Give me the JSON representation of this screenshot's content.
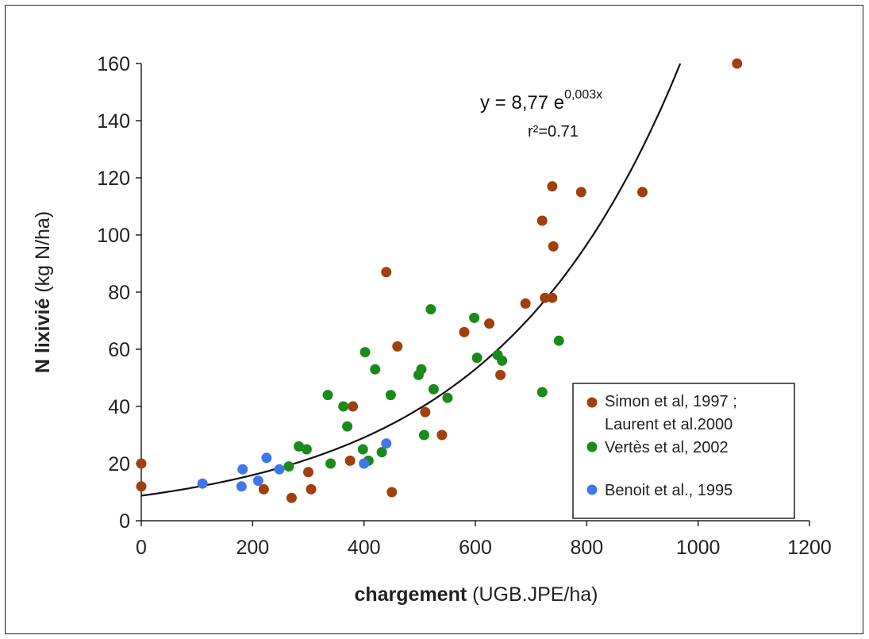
{
  "chart_data": {
    "type": "scatter",
    "title": "",
    "xlabel_bold": "chargement",
    "xlabel_rest": " (UGB.JPE/ha)",
    "ylabel_bold": "N lixivié",
    "ylabel_rest": "  (kg N/ha)",
    "xlim": [
      0,
      1200
    ],
    "ylim": [
      0,
      160
    ],
    "xticks": [
      0,
      200,
      400,
      600,
      800,
      1000,
      1200
    ],
    "yticks": [
      0,
      20,
      40,
      60,
      80,
      100,
      120,
      140,
      160
    ],
    "legend_position": "bottom-right",
    "trendline": {
      "type": "exponential",
      "a": 8.77,
      "b": 0.003,
      "equation_main": "y = 8,77 e",
      "equation_exp": "0,003x",
      "r2_label": "r²=0.71"
    },
    "series": [
      {
        "name_lines": [
          "Simon et al, 1997 ;",
          "Laurent et al.2000"
        ],
        "color": "#A0400F",
        "points": [
          [
            0,
            20
          ],
          [
            0,
            12
          ],
          [
            220,
            11
          ],
          [
            270,
            8
          ],
          [
            300,
            17
          ],
          [
            305,
            11
          ],
          [
            375,
            21
          ],
          [
            380,
            40
          ],
          [
            440,
            87
          ],
          [
            450,
            10
          ],
          [
            460,
            61
          ],
          [
            510,
            38
          ],
          [
            540,
            30
          ],
          [
            580,
            66
          ],
          [
            625,
            69
          ],
          [
            645,
            51
          ],
          [
            690,
            76
          ],
          [
            720,
            105
          ],
          [
            725,
            78
          ],
          [
            738,
            78
          ],
          [
            738,
            117
          ],
          [
            740,
            96
          ],
          [
            790,
            115
          ],
          [
            900,
            115
          ],
          [
            1070,
            160
          ]
        ]
      },
      {
        "name_lines": [
          "Vertès et al, 2002"
        ],
        "color": "#1A8A1A",
        "points": [
          [
            265,
            19
          ],
          [
            283,
            26
          ],
          [
            297,
            25
          ],
          [
            335,
            44
          ],
          [
            340,
            20
          ],
          [
            363,
            40
          ],
          [
            370,
            33
          ],
          [
            398,
            25
          ],
          [
            402,
            59
          ],
          [
            408,
            21
          ],
          [
            420,
            53
          ],
          [
            432,
            24
          ],
          [
            448,
            44
          ],
          [
            498,
            51
          ],
          [
            503,
            53
          ],
          [
            508,
            30
          ],
          [
            520,
            74
          ],
          [
            525,
            46
          ],
          [
            550,
            43
          ],
          [
            598,
            71
          ],
          [
            603,
            57
          ],
          [
            640,
            58
          ],
          [
            648,
            56
          ],
          [
            720,
            45
          ],
          [
            750,
            63
          ]
        ]
      },
      {
        "name_lines": [
          "Benoit et al., 1995"
        ],
        "color": "#3F77E8",
        "points": [
          [
            110,
            13
          ],
          [
            180,
            12
          ],
          [
            182,
            18
          ],
          [
            210,
            14
          ],
          [
            225,
            22
          ],
          [
            248,
            18
          ],
          [
            400,
            20
          ],
          [
            440,
            27
          ]
        ]
      }
    ]
  }
}
